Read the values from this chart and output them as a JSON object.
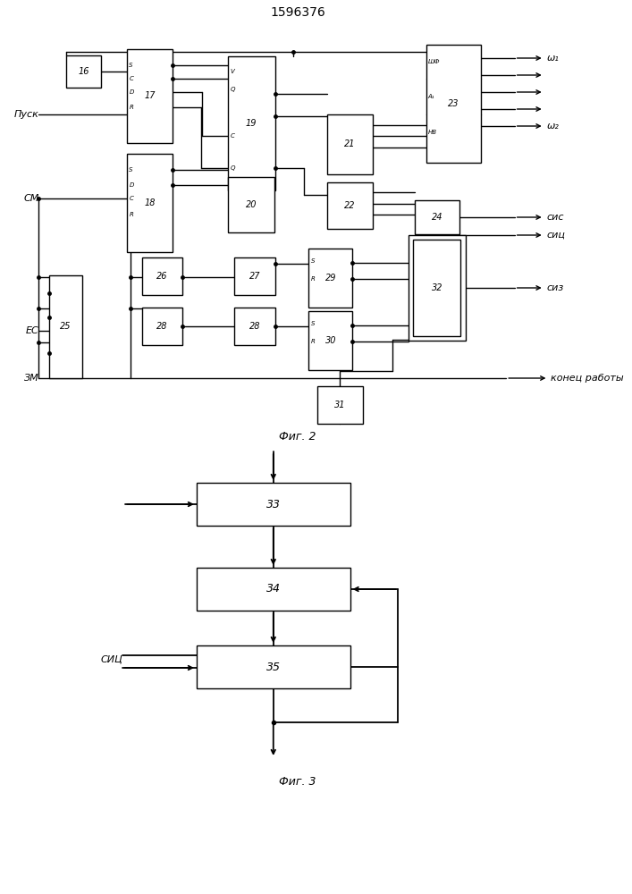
{
  "title": "1596376",
  "fig2_label": "Фиг. 2",
  "fig3_label": "Фиг. 3",
  "lw": 1.0,
  "lw2": 1.3
}
